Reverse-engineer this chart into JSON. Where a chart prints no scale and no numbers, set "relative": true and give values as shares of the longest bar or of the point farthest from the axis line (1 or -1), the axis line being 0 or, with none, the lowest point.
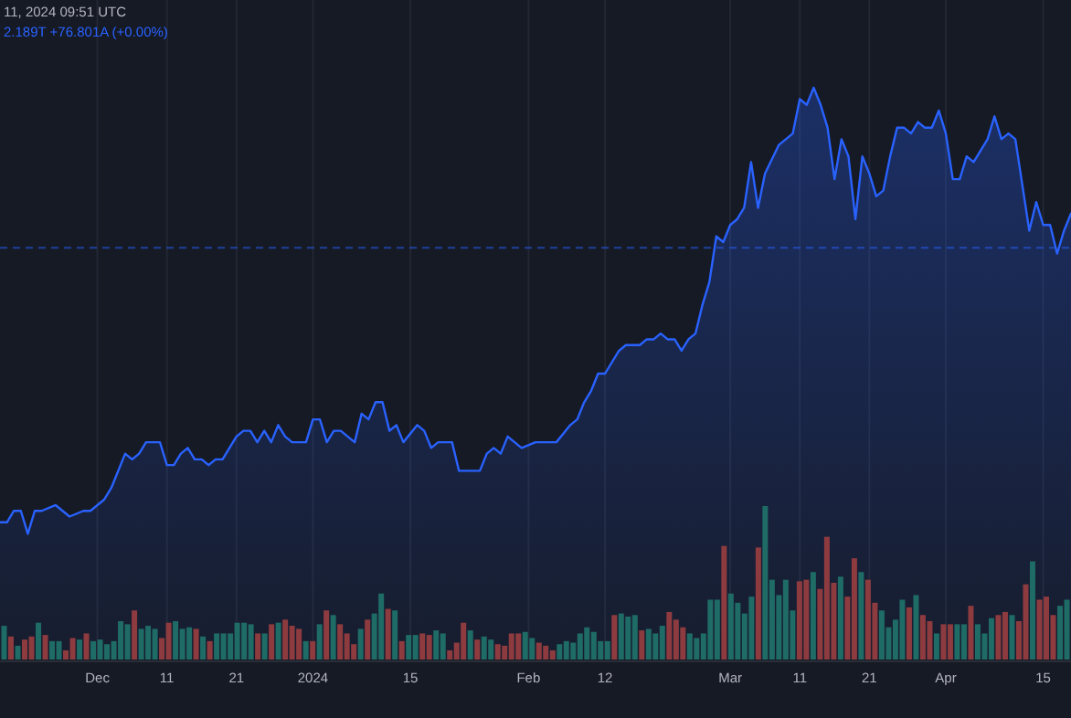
{
  "chart_data": [
    {
      "type": "area",
      "annotations": [
        "11, 2024 09:51 UTC",
        "2.189T  +76.801A (+0.00%)"
      ],
      "color": "#2962ff",
      "relative": true,
      "grid": "x",
      "xlim": [
        "2023-11-17",
        "2024-04-19"
      ],
      "xticks": [
        {
          "value": "2023-12-01",
          "label": "Dec"
        },
        {
          "value": "2023-12-11",
          "label": "11"
        },
        {
          "value": "2023-12-21",
          "label": "21"
        },
        {
          "value": "2024-01-01",
          "label": "2024"
        },
        {
          "value": "2024-01-15",
          "label": "15"
        },
        {
          "value": "2024-02-01",
          "label": "Feb"
        },
        {
          "value": "2024-02-12",
          "label": "12"
        },
        {
          "value": "2024-03-01",
          "label": "Mar"
        },
        {
          "value": "2024-03-11",
          "label": "11"
        },
        {
          "value": "2024-03-21",
          "label": "21"
        },
        {
          "value": "2024-04-01",
          "label": "Apr"
        },
        {
          "value": "2024-04-15",
          "label": "15"
        }
      ],
      "ref_lines": [
        {
          "axis": "y",
          "value": 0.72,
          "color": "#2962ff",
          "line_style": "dashed"
        }
      ],
      "x": [
        "2023-11-17",
        "2023-11-18",
        "2023-11-19",
        "2023-11-20",
        "2023-11-21",
        "2023-11-22",
        "2023-11-23",
        "2023-11-25",
        "2023-11-27",
        "2023-11-29",
        "2023-11-30",
        "2023-12-02",
        "2023-12-03",
        "2023-12-05",
        "2023-12-06",
        "2023-12-07",
        "2023-12-08",
        "2023-12-09",
        "2023-12-10",
        "2023-12-11",
        "2023-12-12",
        "2023-12-13",
        "2023-12-14",
        "2023-12-15",
        "2023-12-16",
        "2023-12-17",
        "2023-12-18",
        "2023-12-19",
        "2023-12-21",
        "2023-12-22",
        "2023-12-23",
        "2023-12-24",
        "2023-12-25",
        "2023-12-26",
        "2023-12-27",
        "2023-12-28",
        "2023-12-29",
        "2023-12-31",
        "2024-01-01",
        "2024-01-02",
        "2024-01-03",
        "2024-01-04",
        "2024-01-05",
        "2024-01-07",
        "2024-01-08",
        "2024-01-09",
        "2024-01-10",
        "2024-01-11",
        "2024-01-12",
        "2024-01-13",
        "2024-01-14",
        "2024-01-16",
        "2024-01-17",
        "2024-01-18",
        "2024-01-19",
        "2024-01-21",
        "2024-01-22",
        "2024-01-24",
        "2024-01-25",
        "2024-01-26",
        "2024-01-27",
        "2024-01-28",
        "2024-01-29",
        "2024-01-30",
        "2024-01-31",
        "2024-02-02",
        "2024-02-04",
        "2024-02-05",
        "2024-02-07",
        "2024-02-08",
        "2024-02-09",
        "2024-02-10",
        "2024-02-11",
        "2024-02-12",
        "2024-02-14",
        "2024-02-15",
        "2024-02-16",
        "2024-02-17",
        "2024-02-18",
        "2024-02-19",
        "2024-02-20",
        "2024-02-21",
        "2024-02-22",
        "2024-02-23",
        "2024-02-24",
        "2024-02-25",
        "2024-02-26",
        "2024-02-27",
        "2024-02-28",
        "2024-02-29",
        "2024-03-01",
        "2024-03-02",
        "2024-03-03",
        "2024-03-04",
        "2024-03-05",
        "2024-03-06",
        "2024-03-08",
        "2024-03-09",
        "2024-03-10",
        "2024-03-11",
        "2024-03-12",
        "2024-03-13",
        "2024-03-14",
        "2024-03-15",
        "2024-03-16",
        "2024-03-17",
        "2024-03-18",
        "2024-03-19",
        "2024-03-20",
        "2024-03-21",
        "2024-03-22",
        "2024-03-23",
        "2024-03-24",
        "2024-03-25",
        "2024-03-26",
        "2024-03-27",
        "2024-03-28",
        "2024-03-29",
        "2024-03-30",
        "2024-03-31",
        "2024-04-01",
        "2024-04-02",
        "2024-04-03",
        "2024-04-04",
        "2024-04-05",
        "2024-04-06",
        "2024-04-07",
        "2024-04-08",
        "2024-04-09",
        "2024-04-10",
        "2024-04-11",
        "2024-04-12",
        "2024-04-13",
        "2024-04-14",
        "2024-04-15",
        "2024-04-16",
        "2024-04-17",
        "2024-04-18",
        "2024-04-19"
      ],
      "values": [
        0.24,
        0.24,
        0.26,
        0.26,
        0.22,
        0.26,
        0.26,
        0.27,
        0.25,
        0.26,
        0.26,
        0.28,
        0.3,
        0.36,
        0.35,
        0.36,
        0.38,
        0.38,
        0.38,
        0.34,
        0.34,
        0.36,
        0.37,
        0.35,
        0.35,
        0.34,
        0.35,
        0.35,
        0.39,
        0.4,
        0.4,
        0.38,
        0.4,
        0.38,
        0.41,
        0.39,
        0.38,
        0.38,
        0.42,
        0.42,
        0.38,
        0.4,
        0.4,
        0.38,
        0.43,
        0.42,
        0.45,
        0.45,
        0.4,
        0.41,
        0.38,
        0.41,
        0.4,
        0.37,
        0.38,
        0.38,
        0.33,
        0.33,
        0.33,
        0.36,
        0.37,
        0.36,
        0.39,
        0.38,
        0.37,
        0.38,
        0.38,
        0.38,
        0.41,
        0.42,
        0.45,
        0.47,
        0.5,
        0.5,
        0.54,
        0.55,
        0.55,
        0.55,
        0.56,
        0.56,
        0.57,
        0.56,
        0.56,
        0.54,
        0.56,
        0.57,
        0.62,
        0.66,
        0.74,
        0.73,
        0.76,
        0.77,
        0.79,
        0.87,
        0.79,
        0.85,
        0.9,
        0.91,
        0.92,
        0.98,
        0.97,
        1,
        0.97,
        0.93,
        0.84,
        0.91,
        0.88,
        0.77,
        0.88,
        0.85,
        0.81,
        0.82,
        0.88,
        0.93,
        0.93,
        0.92,
        0.94,
        0.93,
        0.93,
        0.96,
        0.92,
        0.84,
        0.84,
        0.88,
        0.87,
        0.89,
        0.91,
        0.95,
        0.91,
        0.92,
        0.91,
        0.83,
        0.75,
        0.8,
        0.76,
        0.76,
        0.71,
        0.75,
        0.78
      ]
    },
    {
      "type": "bar",
      "relative": true,
      "tick_labels": false,
      "categories": [
        null,
        null,
        null,
        null,
        null,
        null,
        null,
        null,
        null,
        null,
        null,
        null,
        null,
        null,
        null,
        null,
        null,
        null,
        null,
        null,
        null,
        null,
        null,
        null,
        null,
        null,
        null,
        null,
        null,
        null,
        null,
        null,
        null,
        null,
        null,
        null,
        null,
        null,
        null,
        null,
        null,
        null,
        null,
        null,
        null,
        null,
        null,
        null,
        null,
        null,
        null,
        null,
        null,
        null,
        null,
        null,
        null,
        null,
        null,
        null,
        null,
        null,
        null,
        null,
        null,
        null,
        null,
        null,
        null,
        null,
        null,
        null,
        null,
        null,
        null,
        null,
        null,
        null,
        null,
        null,
        null,
        null,
        null,
        null,
        null,
        null,
        null,
        null,
        null,
        null,
        null,
        null,
        null,
        null,
        null,
        null,
        null,
        null,
        null,
        null,
        null,
        null,
        null,
        null,
        null,
        null,
        null,
        null,
        null,
        null,
        null,
        null,
        null,
        null,
        null,
        null,
        null,
        null,
        null,
        null,
        null,
        null,
        null,
        null,
        null,
        null,
        null,
        null,
        null,
        null,
        null,
        null,
        null,
        null,
        null,
        null,
        null,
        null,
        null,
        null,
        null,
        null,
        null,
        null,
        null,
        null,
        null,
        null,
        null,
        null,
        null,
        null,
        null,
        null,
        null,
        null
      ],
      "values": [
        0.22,
        0.15,
        0.09,
        0.13,
        0.15,
        0.24,
        0.16,
        0.12,
        0.12,
        0.06,
        0.14,
        0.13,
        0.17,
        0.12,
        0.13,
        0.1,
        0.12,
        0.25,
        0.23,
        0.32,
        0.2,
        0.22,
        0.2,
        0.14,
        0.24,
        0.25,
        0.2,
        0.21,
        0.2,
        0.15,
        0.12,
        0.17,
        0.17,
        0.17,
        0.24,
        0.24,
        0.23,
        0.17,
        0.17,
        0.23,
        0.24,
        0.26,
        0.22,
        0.2,
        0.12,
        0.12,
        0.23,
        0.32,
        0.29,
        0.23,
        0.17,
        0.1,
        0.2,
        0.26,
        0.3,
        0.43,
        0.33,
        0.32,
        0.12,
        0.16,
        0.16,
        0.17,
        0.16,
        0.19,
        0.17,
        0.06,
        0.11,
        0.24,
        0.19,
        0.13,
        0.15,
        0.13,
        0.1,
        0.09,
        0.17,
        0.17,
        0.18,
        0.14,
        0.11,
        0.09,
        0.06,
        0.1,
        0.12,
        0.11,
        0.17,
        0.21,
        0.18,
        0.12,
        0.12,
        0.29,
        0.3,
        0.28,
        0.29,
        0.19,
        0.2,
        0.17,
        0.22,
        0.31,
        0.26,
        0.21,
        0.17,
        0.14,
        0.17,
        0.39,
        0.39,
        0.74,
        0.43,
        0.37,
        0.3,
        0.41,
        0.73,
        1,
        0.52,
        0.42,
        0.52,
        0.32,
        0.51,
        0.52,
        0.57,
        0.46,
        0.8,
        0.5,
        0.54,
        0.41,
        0.66,
        0.57,
        0.52,
        0.37,
        0.32,
        0.21,
        0.26,
        0.39,
        0.34,
        0.42,
        0.29,
        0.25,
        0.17,
        0.23,
        0.23,
        0.23,
        0.23,
        0.35,
        0.23,
        0.17,
        0.27,
        0.29,
        0.31,
        0.29,
        0.25,
        0.49,
        0.64,
        0.39,
        0.41,
        0.29,
        0.35,
        0.39
      ],
      "colors": [
        "#1f6b66",
        "#8e3b3f",
        "#1f6b66",
        "#8e3b3f",
        "#8e3b3f",
        "#1f6b66",
        "#8e3b3f",
        "#1f6b66",
        "#1f6b66",
        "#8e3b3f",
        "#8e3b3f",
        "#1f6b66",
        "#8e3b3f",
        "#1f6b66",
        "#1f6b66",
        "#1f6b66",
        "#1f6b66",
        "#1f6b66",
        "#1f6b66",
        "#8e3b3f",
        "#1f6b66",
        "#1f6b66",
        "#1f6b66",
        "#8e3b3f",
        "#8e3b3f",
        "#1f6b66",
        "#1f6b66",
        "#1f6b66",
        "#8e3b3f",
        "#1f6b66",
        "#8e3b3f",
        "#1f6b66",
        "#1f6b66",
        "#1f6b66",
        "#1f6b66",
        "#1f6b66",
        "#1f6b66",
        "#8e3b3f",
        "#1f6b66",
        "#8e3b3f",
        "#1f6b66",
        "#8e3b3f",
        "#8e3b3f",
        "#8e3b3f",
        "#1f6b66",
        "#8e3b3f",
        "#1f6b66",
        "#8e3b3f",
        "#1f6b66",
        "#8e3b3f",
        "#8e3b3f",
        "#8e3b3f",
        "#1f6b66",
        "#8e3b3f",
        "#1f6b66",
        "#1f6b66",
        "#8e3b3f",
        "#1f6b66",
        "#8e3b3f",
        "#1f6b66",
        "#1f6b66",
        "#8e3b3f",
        "#8e3b3f",
        "#1f6b66",
        "#1f6b66",
        "#8e3b3f",
        "#8e3b3f",
        "#8e3b3f",
        "#1f6b66",
        "#8e3b3f",
        "#1f6b66",
        "#1f6b66",
        "#8e3b3f",
        "#8e3b3f",
        "#8e3b3f",
        "#8e3b3f",
        "#1f6b66",
        "#1f6b66",
        "#8e3b3f",
        "#8e3b3f",
        "#8e3b3f",
        "#1f6b66",
        "#1f6b66",
        "#1f6b66",
        "#1f6b66",
        "#1f6b66",
        "#1f6b66",
        "#1f6b66",
        "#1f6b66",
        "#8e3b3f",
        "#1f6b66",
        "#1f6b66",
        "#1f6b66",
        "#8e3b3f",
        "#1f6b66",
        "#1f6b66",
        "#1f6b66",
        "#8e3b3f",
        "#8e3b3f",
        "#8e3b3f",
        "#1f6b66",
        "#1f6b66",
        "#1f6b66",
        "#1f6b66",
        "#1f6b66",
        "#8e3b3f",
        "#1f6b66",
        "#1f6b66",
        "#1f6b66",
        "#1f6b66",
        "#8e3b3f",
        "#1f6b66",
        "#1f6b66",
        "#1f6b66",
        "#1f6b66",
        "#1f6b66",
        "#8e3b3f",
        "#8e3b3f",
        "#1f6b66",
        "#8e3b3f",
        "#8e3b3f",
        "#8e3b3f",
        "#1f6b66",
        "#8e3b3f",
        "#8e3b3f",
        "#1f6b66",
        "#8e3b3f",
        "#8e3b3f",
        "#1f6b66",
        "#1f6b66",
        "#1f6b66",
        "#1f6b66",
        "#8e3b3f",
        "#1f6b66",
        "#8e3b3f",
        "#8e3b3f",
        "#1f6b66",
        "#8e3b3f",
        "#8e3b3f",
        "#1f6b66",
        "#1f6b66",
        "#8e3b3f",
        "#1f6b66",
        "#1f6b66",
        "#1f6b66",
        "#8e3b3f",
        "#8e3b3f",
        "#1f6b66",
        "#8e3b3f",
        "#8e3b3f",
        "#1f6b66",
        "#8e3b3f",
        "#8e3b3f",
        "#8e3b3f",
        "#1f6b66",
        "#1f6b66"
      ]
    }
  ]
}
